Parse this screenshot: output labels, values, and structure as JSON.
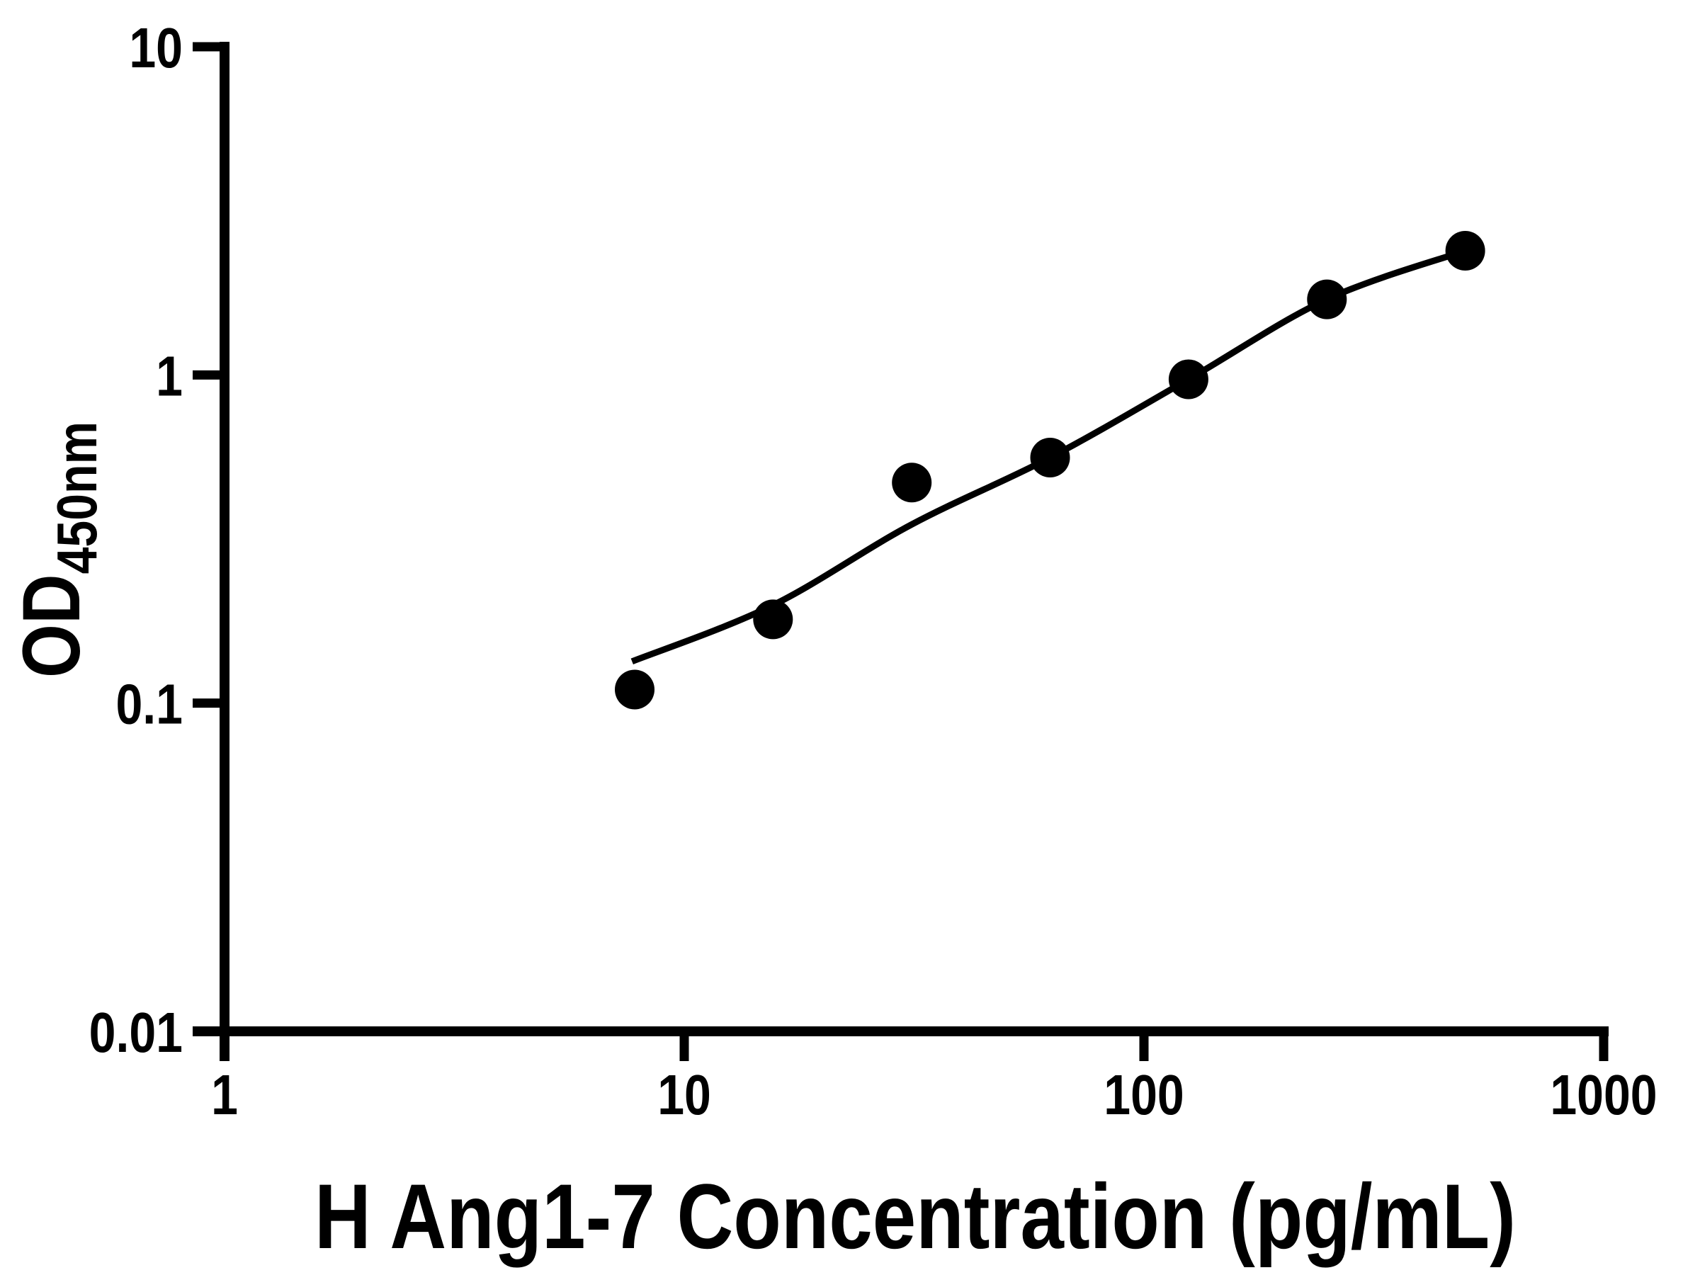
{
  "page": {
    "background_color": "#ffffff",
    "foreground_color": "#000000"
  },
  "chart_data": {
    "type": "scatter",
    "title": "",
    "xlabel": "H Ang1-7 Concentration (pg/mL)",
    "ylabel_base": "OD",
    "ylabel_sub": "450nm",
    "x_scale": "log",
    "y_scale": "log",
    "xlim": [
      1,
      1000
    ],
    "ylim": [
      0.01,
      10
    ],
    "x_tick_values": [
      1,
      10,
      100,
      1000
    ],
    "x_tick_labels": [
      "1",
      "10",
      "100",
      "1000"
    ],
    "y_tick_values": [
      0.01,
      0.1,
      1,
      10
    ],
    "y_tick_labels": [
      "0.01",
      "0.1",
      "1",
      "10"
    ],
    "grid": false,
    "legend": "none",
    "axis_color": "#000000",
    "series": [
      {
        "name": "standard-points",
        "type": "scatter",
        "marker": "circle",
        "marker_color": "#000000",
        "x": [
          7.8,
          15.6,
          31.25,
          62.5,
          125,
          250,
          500
        ],
        "y": [
          0.11,
          0.18,
          0.47,
          0.56,
          0.97,
          1.7,
          2.39
        ]
      },
      {
        "name": "fit-curve",
        "type": "line",
        "line_color": "#000000",
        "x": [
          7.7,
          15.5,
          31.2,
          62.5,
          125,
          250,
          500
        ],
        "y": [
          0.134,
          0.198,
          0.35,
          0.56,
          0.97,
          1.7,
          2.39
        ]
      }
    ]
  }
}
